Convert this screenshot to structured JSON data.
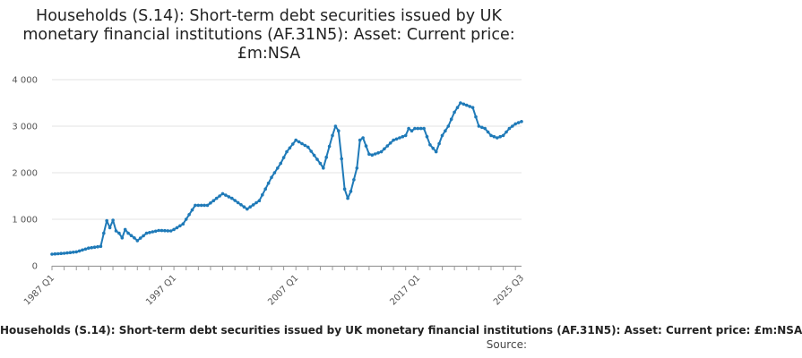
{
  "chart_data": {
    "type": "line",
    "title": "Households (S.14): Short-term debt securities issued by UK monetary financial institutions (AF.31N5): Asset: Current price: £m:NSA",
    "xlabel": "",
    "ylabel": "",
    "ylim": [
      0,
      4000
    ],
    "yticks": [
      0,
      1000,
      2000,
      3000,
      4000
    ],
    "ytick_labels": [
      "0",
      "1 000",
      "2 000",
      "3 000",
      "4 000"
    ],
    "xticks": [
      "1987 Q1",
      "1997 Q1",
      "2007 Q1",
      "2017 Q1",
      "2025 Q3"
    ],
    "grid": true,
    "color": "#1f7ab8",
    "legend_text": "Households (S.14): Short-term debt securities issued by UK monetary financial institutions (AF.31N5): Asset: Current price: £m:NSA",
    "source_text": "Source:",
    "series": [
      {
        "x": [
          "1987 Q1",
          "1988 Q1",
          "1989 Q1",
          "1990 Q1",
          "1991 Q1",
          "1991 Q2",
          "1991 Q3",
          "1991 Q4",
          "1992 Q1",
          "1992 Q2",
          "1992 Q3",
          "1992 Q4",
          "1993 Q1",
          "1993 Q2",
          "1993 Q3",
          "1993 Q4",
          "1994 Q1",
          "1994 Q4",
          "1995 Q4",
          "1996 Q4",
          "1997 Q1",
          "1997 Q4",
          "1998 Q4",
          "1999 Q4",
          "2001 Q1",
          "2001 Q4",
          "2003 Q1",
          "2004 Q1",
          "2005 Q1",
          "2005 Q4",
          "2006 Q2",
          "2007 Q1",
          "2008 Q1",
          "2009 Q1",
          "2009 Q2",
          "2010 Q1",
          "2010 Q2",
          "2010 Q3",
          "2010 Q4",
          "2011 Q1",
          "2011 Q2",
          "2011 Q3",
          "2012 Q1",
          "2012 Q2",
          "2012 Q3",
          "2013 Q1",
          "2013 Q2",
          "2014 Q1",
          "2015 Q1",
          "2016 Q1",
          "2016 Q2",
          "2016 Q3",
          "2016 Q4",
          "2017 Q1",
          "2017 Q3",
          "2018 Q1",
          "2018 Q3",
          "2019 Q1",
          "2019 Q3",
          "2020 Q1",
          "2020 Q3",
          "2021 Q1",
          "2021 Q3",
          "2022 Q1",
          "2022 Q3",
          "2023 Q1",
          "2023 Q3",
          "2024 Q1",
          "2024 Q3",
          "2025 Q1",
          "2025 Q3"
        ],
        "values": [
          250,
          270,
          300,
          380,
          420,
          700,
          970,
          820,
          980,
          750,
          700,
          600,
          780,
          700,
          650,
          600,
          540,
          700,
          760,
          750,
          780,
          900,
          1300,
          1300,
          1550,
          1450,
          1220,
          1400,
          1900,
          2200,
          2450,
          2700,
          2550,
          2200,
          2100,
          2800,
          3000,
          2900,
          2300,
          1650,
          1450,
          1600,
          2100,
          2700,
          2750,
          2400,
          2380,
          2450,
          2700,
          2800,
          2950,
          2900,
          2950,
          2950,
          2950,
          2600,
          2450,
          2800,
          3000,
          3300,
          3500,
          3450,
          3400,
          3000,
          2950,
          2800,
          2750,
          2800,
          2950,
          3050,
          3100
        ]
      }
    ]
  }
}
